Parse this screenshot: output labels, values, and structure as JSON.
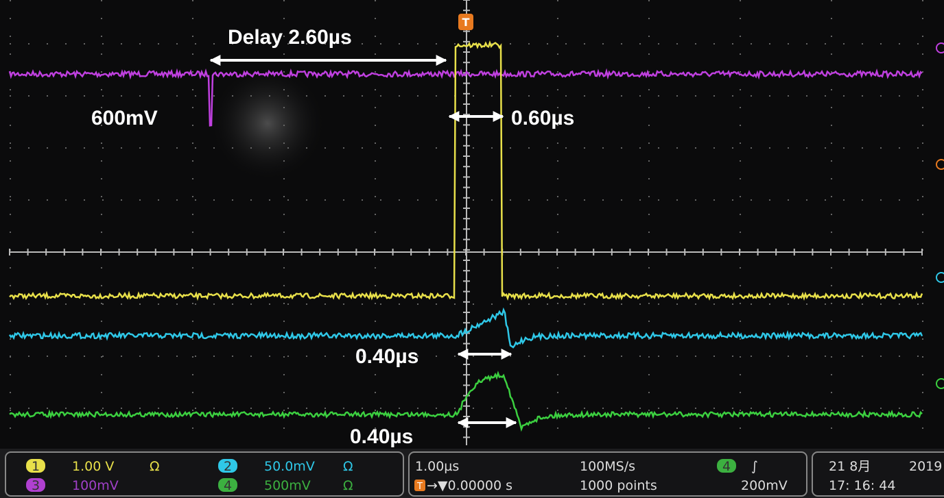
{
  "trigger_marker": "T",
  "annotations": {
    "delay": "Delay 2.60µs",
    "ch3_level": "600mV",
    "pulse_width": "0.60µs",
    "ch2_width": "0.40µs",
    "ch4_width": "0.40µs"
  },
  "status_bar": {
    "channels": [
      {
        "number": "1",
        "scale": "1.00 V",
        "coupling": "Ω"
      },
      {
        "number": "2",
        "scale": "50.0mV",
        "coupling": "Ω"
      },
      {
        "number": "3",
        "scale": "100mV"
      },
      {
        "number": "4",
        "scale": "500mV",
        "coupling": "Ω"
      }
    ],
    "timebase": {
      "scale": "1.00µs",
      "trigger_icon": "T",
      "position": "→▼0.00000 s"
    },
    "acquisition": {
      "sample_rate": "100MS/s",
      "record_length": "1000 points"
    },
    "trigger": {
      "source": "4",
      "slope": "∫",
      "level": "200mV"
    },
    "datetime": {
      "date": "21 8月",
      "year": "2019",
      "time": "17: 16: 44"
    }
  }
}
